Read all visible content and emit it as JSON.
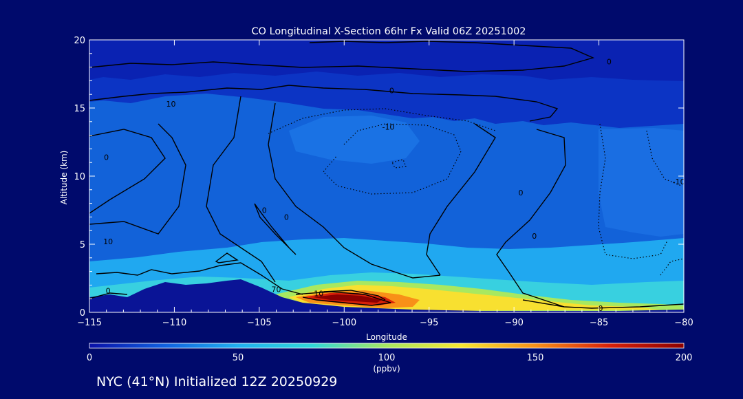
{
  "chart_data": {
    "type": "heatmap",
    "title": "CO Longitudinal X-Section 66hr  Fx Valid 06Z 20251002",
    "xlabel": "Longitude",
    "ylabel": "Altitude (km)",
    "xlim": [
      -115,
      -80
    ],
    "ylim": [
      0,
      20
    ],
    "x_ticks": [
      -115,
      -110,
      -105,
      -100,
      -95,
      -90,
      -85,
      -80
    ],
    "y_ticks": [
      0,
      5,
      10,
      15,
      20
    ],
    "colorbar": {
      "label": "(ppbv)",
      "range": [
        0,
        200
      ],
      "ticks": [
        0,
        50,
        100,
        150,
        200
      ],
      "colormap": [
        "#0a10a8",
        "#1060e0",
        "#20b0f0",
        "#30d8d8",
        "#a8e860",
        "#f8e830",
        "#f89018",
        "#d82008",
        "#8c0000"
      ]
    },
    "contour_labels": [
      {
        "text": "0",
        "x": -97.2,
        "y": 16.3
      },
      {
        "text": "0",
        "x": -84.4,
        "y": 18.4
      },
      {
        "text": "10",
        "x": -110.2,
        "y": 15.3
      },
      {
        "text": "-10",
        "x": -97.4,
        "y": 13.6
      },
      {
        "text": "0",
        "x": -114.0,
        "y": 11.4
      },
      {
        "text": "0",
        "x": -89.6,
        "y": 8.8
      },
      {
        "text": "-10",
        "x": -80.3,
        "y": 9.6
      },
      {
        "text": "0",
        "x": -104.7,
        "y": 7.5
      },
      {
        "text": "0",
        "x": -103.4,
        "y": 7.0
      },
      {
        "text": "0",
        "x": -88.8,
        "y": 5.6
      },
      {
        "text": "10",
        "x": -113.9,
        "y": 5.2
      },
      {
        "text": "0",
        "x": -113.9,
        "y": 1.6
      },
      {
        "text": "70",
        "x": -104.0,
        "y": 1.7
      },
      {
        "text": "10",
        "x": -101.5,
        "y": 1.4
      },
      {
        "text": "0",
        "x": -84.9,
        "y": 0.3
      }
    ]
  },
  "footer": {
    "caption": "NYC (41°N) Initialized 12Z 20250929"
  }
}
